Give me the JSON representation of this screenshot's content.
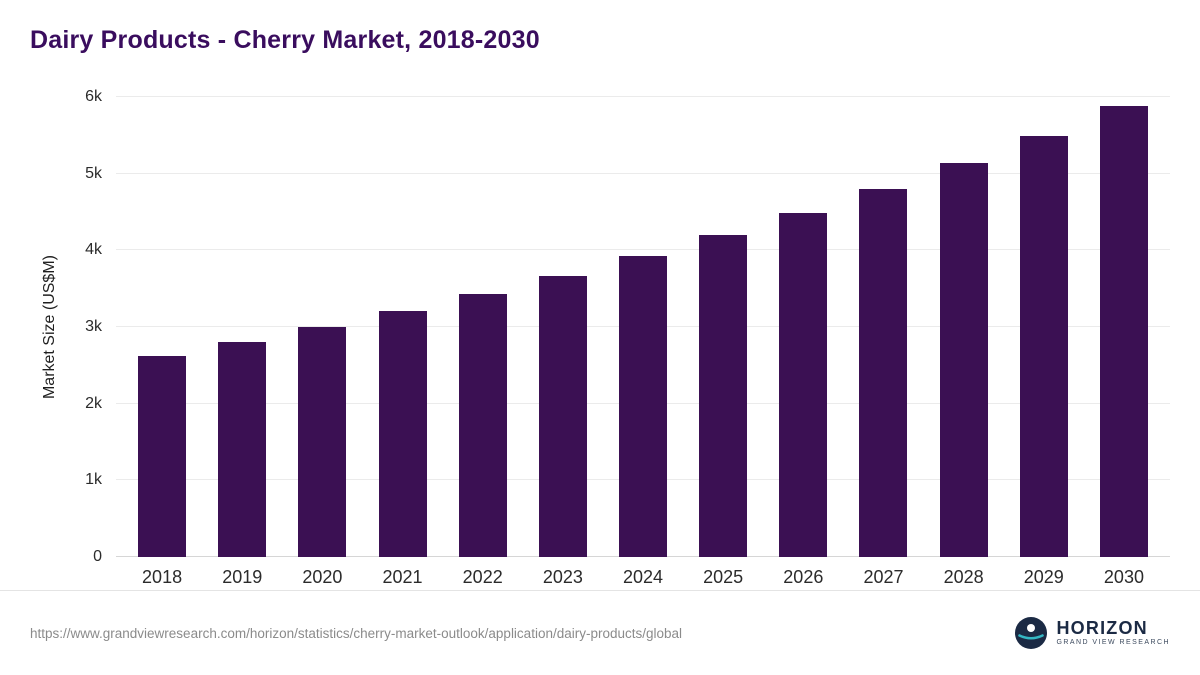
{
  "header": {
    "title": "Dairy Products - Cherry Market, 2018-2030"
  },
  "chart_data": {
    "type": "bar",
    "title": "Dairy Products - Cherry Market, 2018-2030",
    "categories": [
      "2018",
      "2019",
      "2020",
      "2021",
      "2022",
      "2023",
      "2024",
      "2025",
      "2026",
      "2027",
      "2028",
      "2029",
      "2030"
    ],
    "values": [
      2620,
      2800,
      3000,
      3210,
      3430,
      3660,
      3930,
      4200,
      4490,
      4800,
      5140,
      5490,
      5880
    ],
    "xlabel": "",
    "ylabel": "Market Size (US$M)",
    "ylim": [
      0,
      6000
    ],
    "yticks": [
      0,
      1000,
      2000,
      3000,
      4000,
      5000,
      6000
    ],
    "ytick_labels": [
      "0",
      "1k",
      "2k",
      "3k",
      "4k",
      "5k",
      "6k"
    ],
    "bar_color": "#3b1053",
    "grid": true,
    "legend": false
  },
  "colors": {
    "title": "#3a0d5e",
    "bar": "#3b1053",
    "gridline": "#ebebeb",
    "logo_accent": "#35b7c3",
    "logo_dark": "#1b2a44"
  },
  "footer": {
    "source_url": "https://www.grandviewresearch.com/horizon/statistics/cherry-market-outlook/application/dairy-products/global",
    "logo": {
      "name": "HORIZON",
      "subtitle": "GRAND VIEW RESEARCH"
    }
  }
}
